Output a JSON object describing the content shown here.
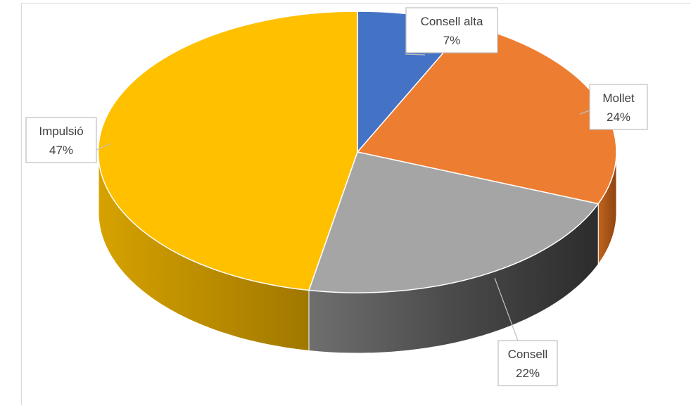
{
  "chart_data": {
    "type": "pie",
    "title": "",
    "slices": [
      {
        "name": "Consell alta",
        "value": 7,
        "label": "7%",
        "color": "#4472C4",
        "side_color": "#2F5597"
      },
      {
        "name": "Mollet",
        "value": 24,
        "label": "24%",
        "color": "#ED7D31",
        "side_color": "#B65A1A"
      },
      {
        "name": "Consell",
        "value": 22,
        "label": "22%",
        "color": "#A5A5A5",
        "side_color": "#3F3F3F"
      },
      {
        "name": "Impulsió",
        "value": 47,
        "label": "47%",
        "color": "#FFC000",
        "side_color": "#C89400"
      }
    ],
    "legend": "none",
    "style": "3d"
  }
}
